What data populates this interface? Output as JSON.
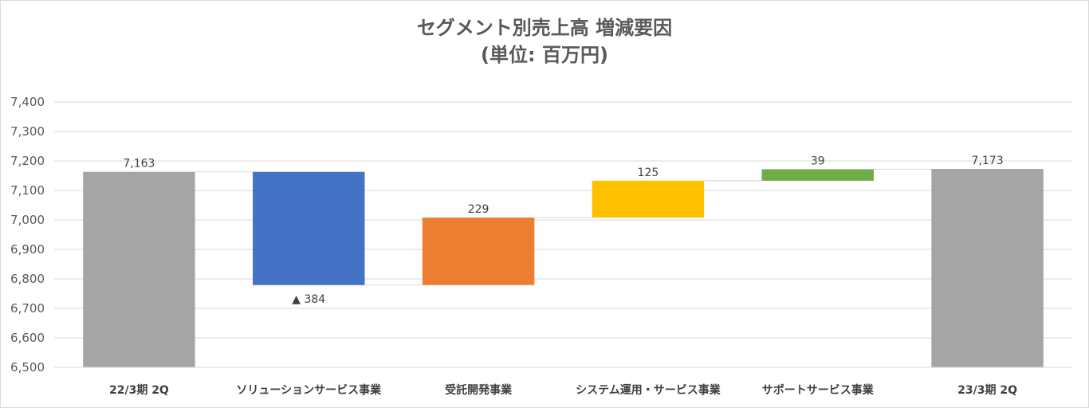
{
  "chart_data": {
    "type": "waterfall",
    "title": "セグメント別売上高 増減要因",
    "subtitle": "(単位: 百万円)",
    "ylim": [
      6500,
      7400
    ],
    "yticks": [
      6500,
      6600,
      6700,
      6800,
      6900,
      7000,
      7100,
      7200,
      7300,
      7400
    ],
    "ytick_labels": [
      "6,500",
      "6,600",
      "6,700",
      "6,800",
      "6,900",
      "7,000",
      "7,100",
      "7,200",
      "7,300",
      "7,400"
    ],
    "grid": true,
    "categories": [
      "22/3期 2Q",
      "ソリューションサービス事業",
      "受託開発事業",
      "システム運用・サービス事業",
      "サポートサービス事業",
      "23/3期 2Q"
    ],
    "bars": [
      {
        "kind": "total",
        "start": 6500,
        "end": 7163,
        "label": "7,163",
        "color": "#a5a5a5"
      },
      {
        "kind": "decrease",
        "start": 7163,
        "end": 6779,
        "label": "▲ 384",
        "color": "#4472c4"
      },
      {
        "kind": "increase",
        "start": 6779,
        "end": 7008,
        "label": "229",
        "color": "#ed7d31"
      },
      {
        "kind": "increase",
        "start": 7008,
        "end": 7133,
        "label": "125",
        "color": "#ffc000"
      },
      {
        "kind": "increase",
        "start": 7133,
        "end": 7172,
        "label": "39",
        "color": "#70ad47"
      },
      {
        "kind": "total",
        "start": 6500,
        "end": 7173,
        "label": "7,173",
        "color": "#a5a5a5"
      }
    ]
  }
}
